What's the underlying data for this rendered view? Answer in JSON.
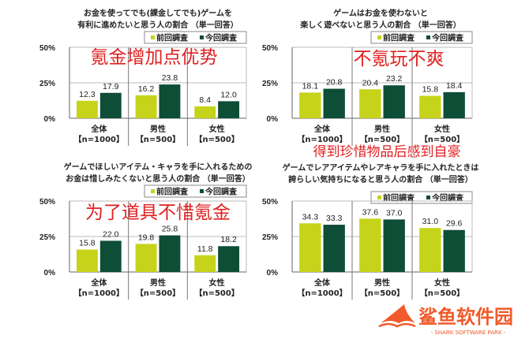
{
  "colors": {
    "prev": "#c5d41a",
    "curr": "#0e4d36",
    "annotation": "#e02020",
    "watermark": "#f15a2a"
  },
  "chart_data": [
    {
      "type": "bar",
      "title": [
        "お金を使ってでも(課金してでも)ゲームを",
        "有利に進めたいと思う人の割合 （単一回答）"
      ],
      "annotation": "氪金增加点优势",
      "categories": [
        "全体",
        "男性",
        "女性"
      ],
      "category_n": [
        "【n=1000】",
        "【n=500】",
        "【n=500】"
      ],
      "series": [
        {
          "name": "前回調査",
          "values": [
            12.3,
            16.2,
            8.4
          ]
        },
        {
          "name": "今回調査",
          "values": [
            17.9,
            23.8,
            12.0
          ]
        }
      ],
      "yticks": [
        "0%",
        "25%",
        "50%"
      ],
      "ylim": [
        0,
        50
      ],
      "legend": "top-right",
      "grid": true
    },
    {
      "type": "bar",
      "title": [
        "ゲームはお金を使わないと",
        "楽しく遊べないと思う人の割合 （単一回答）"
      ],
      "annotation": "不氪玩不爽",
      "categories": [
        "全体",
        "男性",
        "女性"
      ],
      "category_n": [
        "【n=1000】",
        "【n=500】",
        "【n=500】"
      ],
      "series": [
        {
          "name": "前回調査",
          "values": [
            18.1,
            20.4,
            15.8
          ]
        },
        {
          "name": "今回調査",
          "values": [
            20.8,
            23.2,
            18.4
          ]
        }
      ],
      "yticks": [
        "0%",
        "25%",
        "50%"
      ],
      "ylim": [
        0,
        50
      ],
      "legend": "top-right",
      "grid": true
    },
    {
      "type": "bar",
      "title": [
        "ゲームでほしいアイテム・キャラを手に入れるための",
        "お金は惜しみたくないと思う人の割合 （単一回答）"
      ],
      "annotation": "为了道具不惜氪金",
      "categories": [
        "全体",
        "男性",
        "女性"
      ],
      "category_n": [
        "【n=1000】",
        "【n=500】",
        "【n=500】"
      ],
      "series": [
        {
          "name": "前回調査",
          "values": [
            15.8,
            19.8,
            11.8
          ]
        },
        {
          "name": "今回調査",
          "values": [
            22.0,
            25.8,
            18.2
          ]
        }
      ],
      "yticks": [
        "0%",
        "25%",
        "50%"
      ],
      "ylim": [
        0,
        50
      ],
      "legend": "top-right",
      "grid": true
    },
    {
      "type": "bar",
      "title": [
        "ゲームでレアアイテムやレアキャラを手に入れたときは",
        "誇らしい気持ちになると思う人の割合 （単一回答）"
      ],
      "annotation": "得到珍惜物品后感到自豪",
      "categories": [
        "全体",
        "男性",
        "女性"
      ],
      "category_n": [
        "【n=1000】",
        "【n=500】",
        "【n=500】"
      ],
      "series": [
        {
          "name": "前回調査",
          "values": [
            34.3,
            37.6,
            31.0
          ]
        },
        {
          "name": "今回調査",
          "values": [
            33.3,
            37.0,
            29.6
          ]
        }
      ],
      "yticks": [
        "0%",
        "25%",
        "50%"
      ],
      "ylim": [
        0,
        50
      ],
      "legend": "top-right",
      "grid": true
    }
  ],
  "watermark": {
    "name": "鲨鱼软件园",
    "subtitle": "- SHARK SOFTWARE PARK -"
  }
}
